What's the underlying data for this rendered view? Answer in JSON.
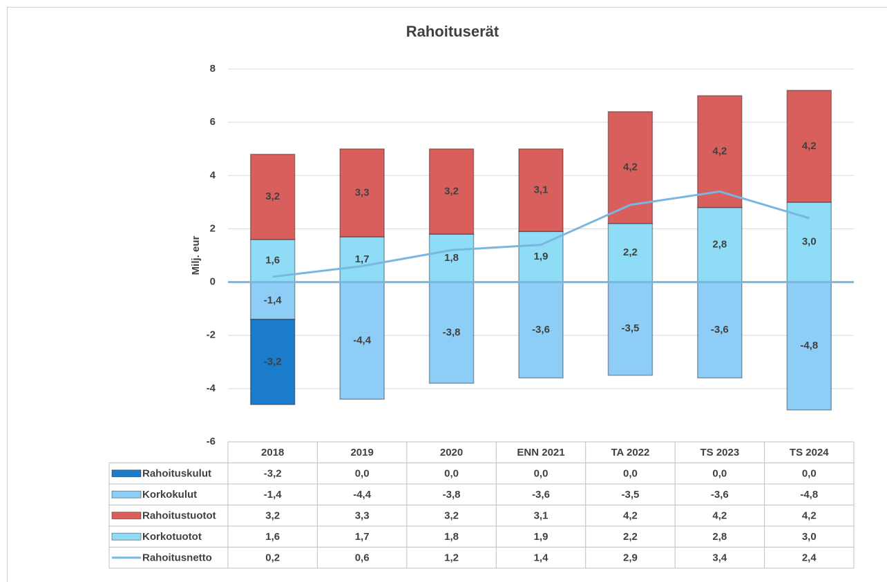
{
  "chart_data": {
    "type": "bar",
    "title": "Rahoituserät",
    "y_label": "Milj. eur",
    "categories": [
      "2018",
      "2019",
      "2020",
      "ENN 2021",
      "TA 2022",
      "TS 2023",
      "TS 2024"
    ],
    "ylim": [
      -6,
      8
    ],
    "yticks": [
      -6,
      -4,
      -2,
      0,
      2,
      4,
      6,
      8
    ],
    "grid": true,
    "series": [
      {
        "name": "Rahoituskulut",
        "color": "#1b7ccc",
        "stack": "neg",
        "values": [
          -3.2,
          0,
          0,
          0,
          0,
          0,
          0
        ],
        "value_labels": [
          "-3,2",
          "0,0",
          "0,0",
          "0,0",
          "0,0",
          "0,0",
          "0,0"
        ]
      },
      {
        "name": "Korkokulut",
        "color": "#8dcdf6",
        "stack": "neg",
        "values": [
          -1.4,
          -4.4,
          -3.8,
          -3.6,
          -3.5,
          -3.6,
          -4.8
        ],
        "value_labels": [
          "-1,4",
          "-4,4",
          "-3,8",
          "-3,6",
          "-3,5",
          "-3,6",
          "-4,8"
        ]
      },
      {
        "name": "Rahoitustuotot",
        "color": "#d95f5c",
        "stack": "pos",
        "values": [
          3.2,
          3.3,
          3.2,
          3.1,
          4.2,
          4.2,
          4.2
        ],
        "value_labels": [
          "3,2",
          "3,3",
          "3,2",
          "3,1",
          "4,2",
          "4,2",
          "4,2"
        ]
      },
      {
        "name": "Korkotuotot",
        "color": "#8edcf6",
        "stack": "pos",
        "values": [
          1.6,
          1.7,
          1.8,
          1.9,
          2.2,
          2.8,
          3.0
        ],
        "value_labels": [
          "1,6",
          "1,7",
          "1,8",
          "1,9",
          "2,2",
          "2,8",
          "3,0"
        ]
      },
      {
        "name": "Rahoitusnetto",
        "color": "#7ab6df",
        "kind": "line",
        "values": [
          0.2,
          0.6,
          1.2,
          1.4,
          2.9,
          3.4,
          2.4
        ],
        "value_labels": [
          "0,2",
          "0,6",
          "1,2",
          "1,4",
          "2,9",
          "3,4",
          "2,4"
        ]
      }
    ]
  }
}
